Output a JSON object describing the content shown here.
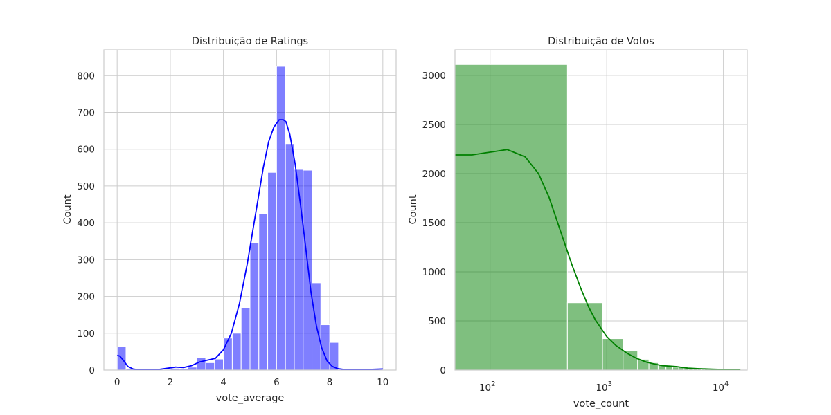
{
  "chart_data": [
    {
      "type": "bar",
      "title": "Distribuição de Ratings",
      "xlabel": "vote_average",
      "ylabel": "Count",
      "xlim": [
        -0.5,
        10.5
      ],
      "ylim": [
        0,
        870
      ],
      "x_ticks": [
        0,
        2,
        4,
        6,
        8,
        10
      ],
      "y_ticks": [
        0,
        100,
        200,
        300,
        400,
        500,
        600,
        700,
        800
      ],
      "grid": true,
      "color": "#0000ff",
      "bin_width": 0.3333,
      "bins_start": [
        0.0,
        0.3333,
        0.6667,
        1.0,
        1.3333,
        1.6667,
        2.0,
        2.3333,
        2.6667,
        3.0,
        3.3333,
        3.6667,
        4.0,
        4.3333,
        4.6667,
        5.0,
        5.3333,
        5.6667,
        6.0,
        6.3333,
        6.6667,
        7.0,
        7.3333,
        7.6667,
        8.0,
        8.3333,
        8.6667,
        9.0,
        9.3333,
        9.6667
      ],
      "counts": [
        63,
        3,
        0,
        0,
        0,
        0,
        5,
        3,
        8,
        33,
        20,
        30,
        87,
        100,
        170,
        345,
        425,
        537,
        825,
        615,
        545,
        543,
        237,
        123,
        75,
        2,
        0,
        0,
        0,
        2
      ],
      "kde": {
        "x": [
          0.0,
          0.1,
          0.25,
          0.4,
          0.6,
          0.8,
          1.0,
          1.3,
          1.6,
          1.9,
          2.2,
          2.5,
          2.8,
          3.1,
          3.4,
          3.7,
          4.0,
          4.3,
          4.6,
          4.9,
          5.2,
          5.5,
          5.7,
          5.9,
          6.1,
          6.25,
          6.35,
          6.5,
          6.7,
          6.9,
          7.1,
          7.3,
          7.5,
          7.7,
          7.9,
          8.1,
          8.3,
          8.5,
          8.8,
          9.2,
          9.6,
          10.0
        ],
        "y": [
          40,
          38,
          25,
          10,
          3,
          1,
          1,
          1,
          2,
          5,
          8,
          7,
          12,
          22,
          27,
          32,
          55,
          100,
          180,
          290,
          420,
          550,
          620,
          660,
          680,
          680,
          675,
          640,
          560,
          450,
          330,
          210,
          120,
          60,
          25,
          10,
          4,
          2,
          1,
          1,
          2,
          3
        ]
      }
    },
    {
      "type": "bar",
      "title": "Distribuição de Votos",
      "xlabel": "vote_count",
      "ylabel": "Count",
      "x_scale": "log",
      "xlim": [
        50,
        16000
      ],
      "ylim": [
        0,
        3260
      ],
      "x_ticks": [
        100,
        1000,
        10000
      ],
      "x_tick_labels": [
        {
          "base": "10",
          "exp": "2"
        },
        {
          "base": "10",
          "exp": "3"
        },
        {
          "base": "10",
          "exp": "4"
        }
      ],
      "y_ticks": [
        0,
        500,
        1000,
        1500,
        2000,
        2500,
        3000
      ],
      "grid": true,
      "color": "#008000",
      "bins": [
        {
          "x0": 0,
          "x1": 460,
          "count": 3110
        },
        {
          "x0": 460,
          "x1": 920,
          "count": 685
        },
        {
          "x0": 920,
          "x1": 1380,
          "count": 320
        },
        {
          "x0": 1380,
          "x1": 1840,
          "count": 195
        },
        {
          "x0": 1840,
          "x1": 2300,
          "count": 110
        },
        {
          "x0": 2300,
          "x1": 2760,
          "count": 75
        },
        {
          "x0": 2760,
          "x1": 3220,
          "count": 50
        },
        {
          "x0": 3220,
          "x1": 3680,
          "count": 40
        },
        {
          "x0": 3680,
          "x1": 4140,
          "count": 30
        },
        {
          "x0": 4140,
          "x1": 4600,
          "count": 30
        },
        {
          "x0": 4600,
          "x1": 5060,
          "count": 20
        },
        {
          "x0": 5060,
          "x1": 5520,
          "count": 20
        },
        {
          "x0": 5520,
          "x1": 5980,
          "count": 15
        },
        {
          "x0": 5980,
          "x1": 6440,
          "count": 12
        },
        {
          "x0": 6440,
          "x1": 6900,
          "count": 10
        },
        {
          "x0": 6900,
          "x1": 7360,
          "count": 10
        },
        {
          "x0": 7360,
          "x1": 7820,
          "count": 8
        },
        {
          "x0": 7820,
          "x1": 8280,
          "count": 8
        },
        {
          "x0": 8280,
          "x1": 8740,
          "count": 6
        },
        {
          "x0": 8740,
          "x1": 9200,
          "count": 6
        },
        {
          "x0": 9200,
          "x1": 9660,
          "count": 5
        },
        {
          "x0": 9660,
          "x1": 10120,
          "count": 5
        },
        {
          "x0": 10120,
          "x1": 10580,
          "count": 4
        },
        {
          "x0": 10580,
          "x1": 11040,
          "count": 4
        },
        {
          "x0": 11040,
          "x1": 11500,
          "count": 3
        },
        {
          "x0": 11500,
          "x1": 11960,
          "count": 3
        },
        {
          "x0": 11960,
          "x1": 12420,
          "count": 2
        },
        {
          "x0": 12420,
          "x1": 12880,
          "count": 2
        },
        {
          "x0": 12880,
          "x1": 13340,
          "count": 2
        },
        {
          "x0": 13340,
          "x1": 13800,
          "count": 2
        }
      ],
      "kde": {
        "x": [
          50,
          60,
          70,
          90,
          110,
          140,
          200,
          260,
          320,
          400,
          500,
          600,
          700,
          800,
          1000,
          1200,
          1500,
          1800,
          2200,
          2600,
          3000,
          3500,
          4000,
          4500,
          5000,
          6000,
          7000,
          8000,
          9000,
          10000,
          12000,
          14000
        ],
        "y": [
          2190,
          2190,
          2190,
          2210,
          2225,
          2245,
          2170,
          2000,
          1760,
          1420,
          1080,
          830,
          640,
          510,
          340,
          250,
          170,
          120,
          80,
          60,
          45,
          40,
          35,
          25,
          20,
          15,
          12,
          10,
          8,
          6,
          4,
          3
        ]
      }
    }
  ]
}
